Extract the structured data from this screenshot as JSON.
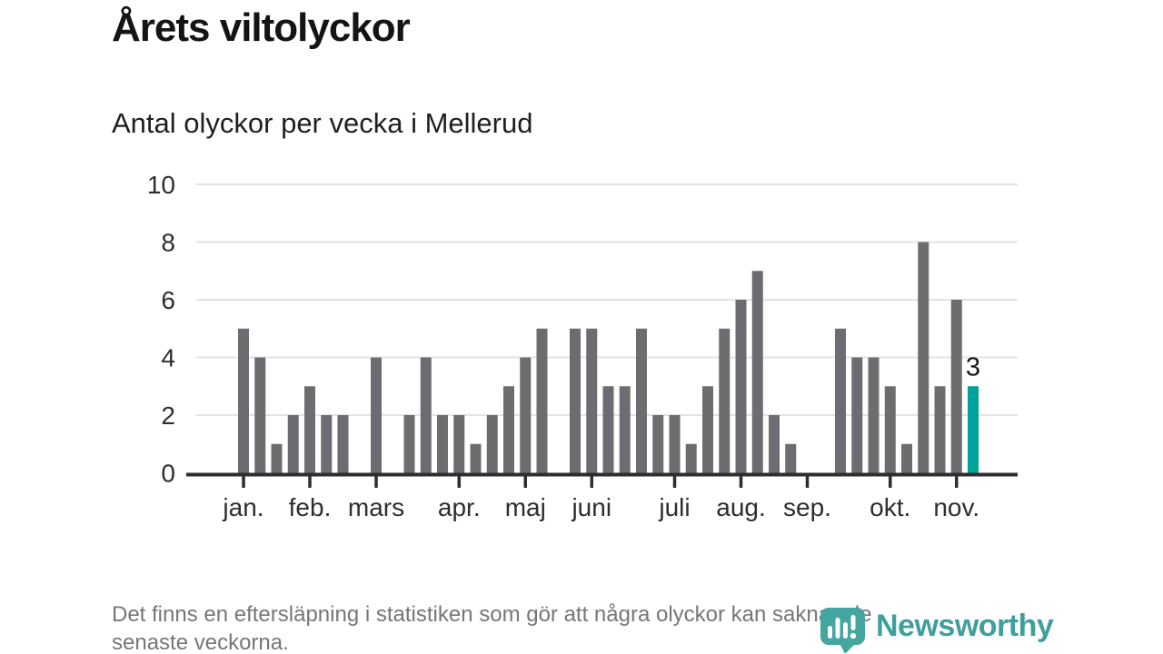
{
  "chart_data": {
    "type": "bar",
    "title": "Årets viltolyckor",
    "subtitle": "Antal olyckor per vecka i Mellerud",
    "x_unit": "vecka",
    "values": [
      5,
      4,
      1,
      2,
      3,
      2,
      2,
      0,
      4,
      0,
      2,
      4,
      2,
      2,
      1,
      2,
      3,
      4,
      5,
      0,
      5,
      5,
      3,
      3,
      5,
      2,
      2,
      1,
      3,
      5,
      6,
      7,
      2,
      1,
      0,
      0,
      5,
      4,
      4,
      3,
      1,
      8,
      3,
      6,
      3
    ],
    "ylim": [
      0,
      10
    ],
    "yticks": [
      0,
      2,
      4,
      6,
      8,
      10
    ],
    "grid": true,
    "months": [
      {
        "label": "jan.",
        "week": 1
      },
      {
        "label": "feb.",
        "week": 5
      },
      {
        "label": "mars",
        "week": 9
      },
      {
        "label": "apr.",
        "week": 14
      },
      {
        "label": "maj",
        "week": 18
      },
      {
        "label": "juni",
        "week": 22
      },
      {
        "label": "juli",
        "week": 27
      },
      {
        "label": "aug.",
        "week": 31
      },
      {
        "label": "sep.",
        "week": 35
      },
      {
        "label": "okt.",
        "week": 40
      },
      {
        "label": "nov.",
        "week": 44
      }
    ],
    "bar_color": "#6d6c70",
    "highlight_color": "#00a39b",
    "highlight_index": 44,
    "highlight_label": "3"
  },
  "footer": {
    "line1": "Det finns en eftersläpning i statistiken som gör att några olyckor kan saknas de",
    "line2": "senaste veckorna."
  },
  "logo": {
    "text": "Newsworthy",
    "color": "#3f9f9c"
  }
}
